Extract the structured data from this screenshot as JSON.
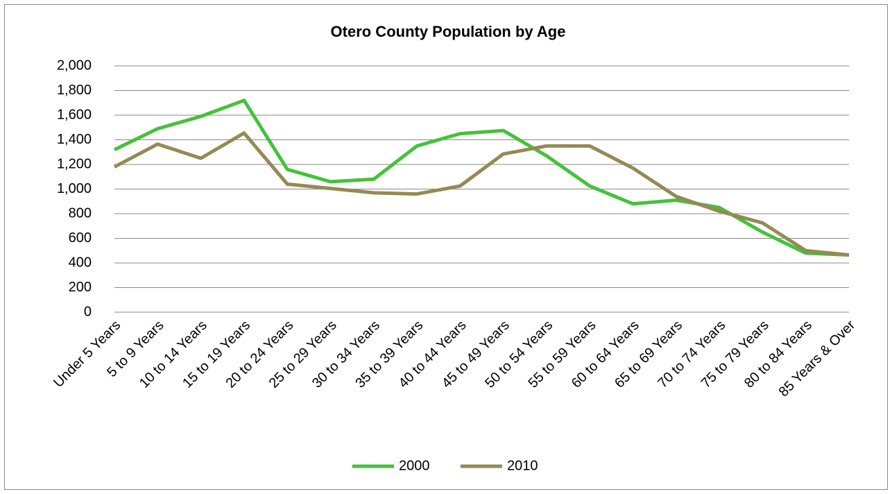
{
  "chart_data": {
    "type": "line",
    "title": "Otero County Population by Age",
    "categories": [
      "Under 5 Years",
      "5 to 9 Years",
      "10 to 14 Years",
      "15 to 19 Years",
      "20 to 24 Years",
      "25 to 29 Years",
      "30 to 34 Years",
      "35 to 39 Years",
      "40 to 44 Years",
      "45 to 49 Years",
      "50 to 54 Years",
      "55 to 59 Years",
      "60 to 64 Years",
      "65 to 69 Years",
      "70 to 74 Years",
      "75 to 79 Years",
      "80 to 84 Years",
      "85 Years & Over"
    ],
    "series": [
      {
        "name": "2000",
        "color": "#44c23a",
        "values": [
          1320,
          1490,
          1590,
          1720,
          1160,
          1060,
          1080,
          1350,
          1450,
          1475,
          1270,
          1025,
          880,
          910,
          850,
          650,
          480,
          465
        ]
      },
      {
        "name": "2010",
        "color": "#948a54",
        "values": [
          1180,
          1365,
          1250,
          1455,
          1040,
          1005,
          970,
          960,
          1025,
          1285,
          1350,
          1350,
          1170,
          940,
          820,
          725,
          500,
          465
        ]
      }
    ],
    "ylim": [
      0,
      2000
    ],
    "yticks": [
      0,
      200,
      400,
      600,
      800,
      {
        "value": 1000,
        "label": "1,000"
      },
      {
        "value": 1200,
        "label": "1,200"
      },
      {
        "value": 1400,
        "label": "1,400"
      },
      {
        "value": 1600,
        "label": "1,600"
      },
      {
        "value": 1800,
        "label": "1,800"
      },
      {
        "value": 2000,
        "label": "2,000"
      }
    ],
    "grid": true,
    "legend": "bottom"
  }
}
